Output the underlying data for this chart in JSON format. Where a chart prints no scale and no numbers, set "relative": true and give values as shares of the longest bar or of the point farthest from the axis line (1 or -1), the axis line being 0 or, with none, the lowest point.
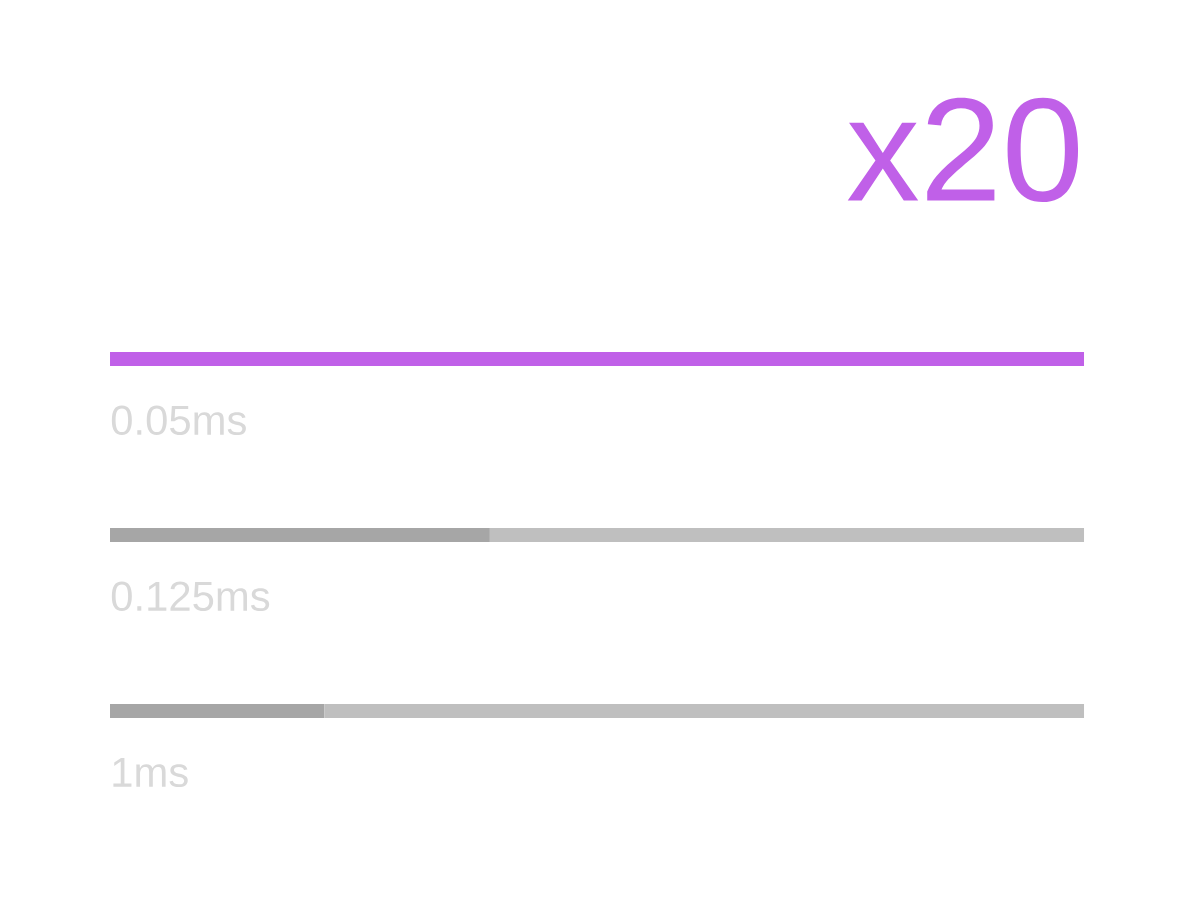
{
  "chart_data": {
    "type": "bar",
    "orientation": "horizontal",
    "stacked": true,
    "relative": true,
    "title": "x20",
    "categories": [
      "0.05ms",
      "0.125ms",
      "1ms"
    ],
    "series": [
      {
        "colors": [
          "#c060e8",
          "#a6a6a6",
          "#a6a6a6"
        ],
        "values": [
          1,
          0.39,
          0.22
        ]
      },
      {
        "color": "#bfbfbf",
        "values": [
          0,
          0.61,
          0.78
        ]
      }
    ]
  }
}
